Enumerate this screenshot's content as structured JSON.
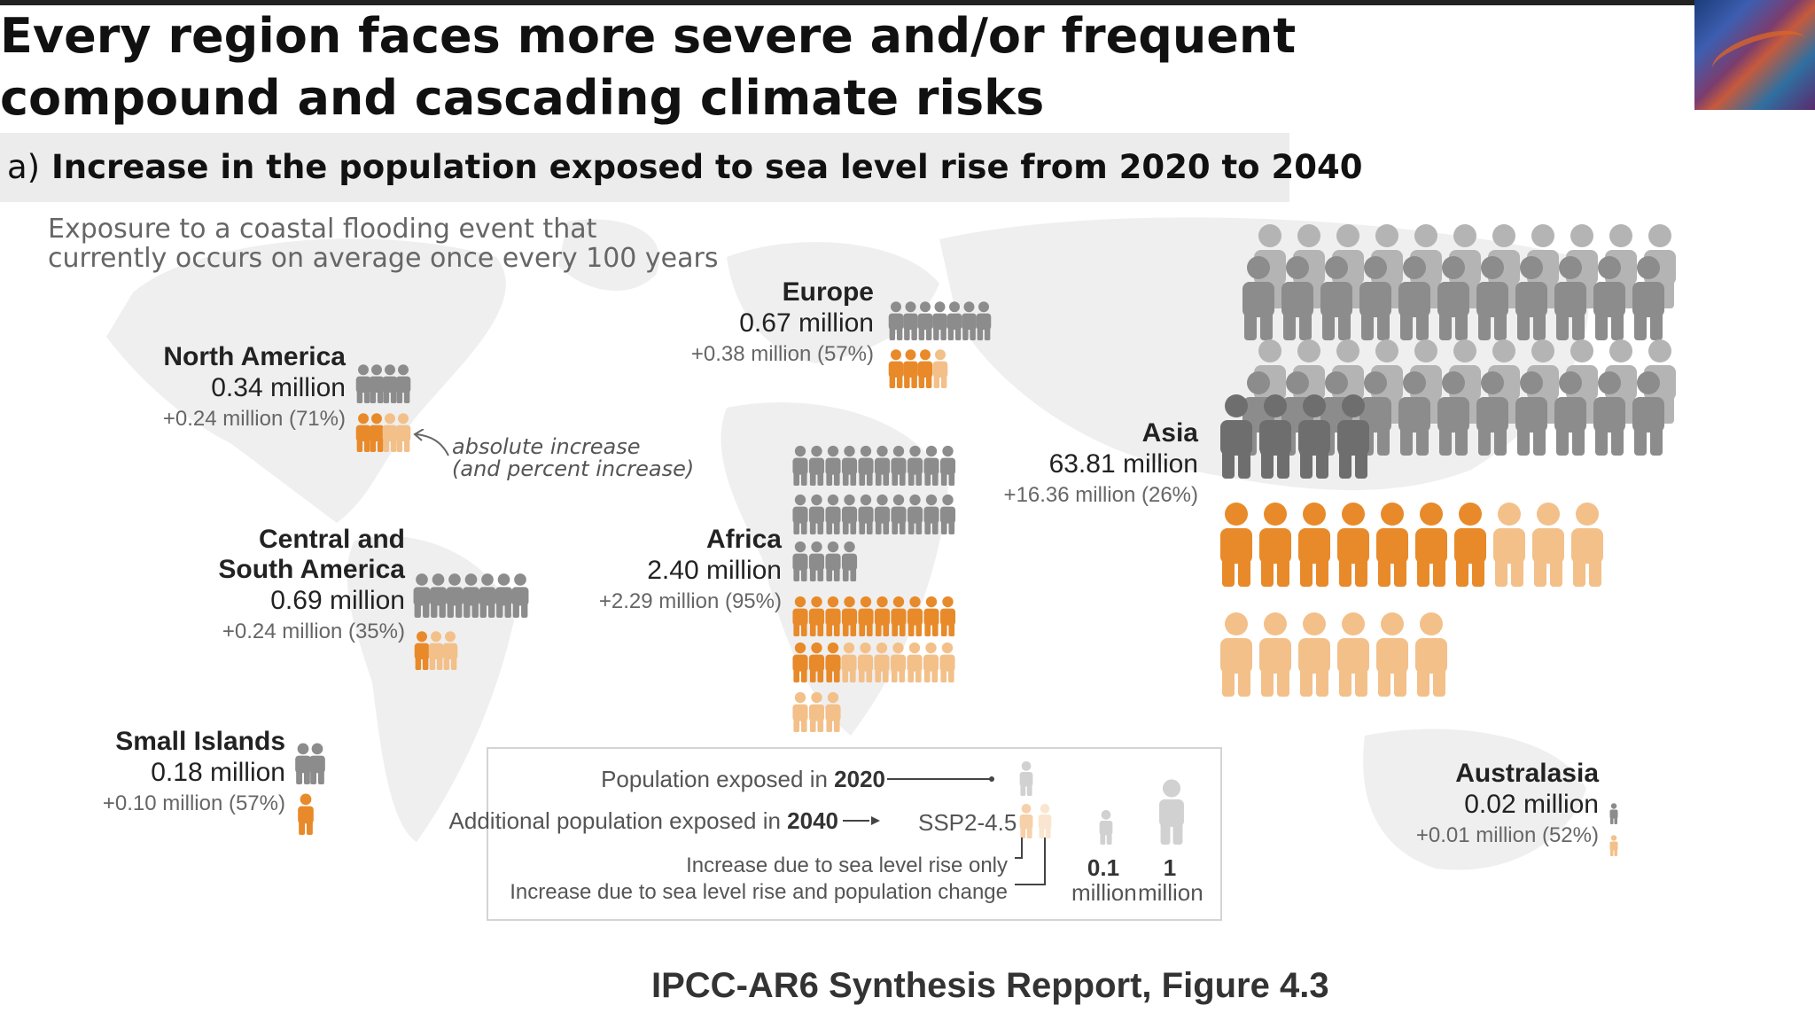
{
  "title": "Every region faces more severe and/or frequent compound and cascading climate risks",
  "panel": {
    "letter": "a)",
    "title": "Increase in the population exposed to sea level rise from 2020 to 2040"
  },
  "caption": {
    "line1": "Exposure to a coastal flooding event that",
    "line2": "currently occurs on average once every 100 years"
  },
  "regions": {
    "north_america": {
      "name": "North America",
      "value": "0.34 million",
      "increase": "+0.24 million (71%)"
    },
    "europe": {
      "name": "Europe",
      "value": "0.67 million",
      "increase": "+0.38 million (57%)"
    },
    "asia": {
      "name": "Asia",
      "value": "63.81 million",
      "increase": "+16.36 million (26%)"
    },
    "central_south_america": {
      "name": "Central and\nSouth America",
      "value": "0.69 million",
      "increase": "+0.24 million (35%)"
    },
    "africa": {
      "name": "Africa",
      "value": "2.40 million",
      "increase": "+2.29 million (95%)"
    },
    "small_islands": {
      "name": "Small Islands",
      "value": "0.18 million",
      "increase": "+0.10 million (57%)"
    },
    "australasia": {
      "name": "Australasia",
      "value": "0.02 million",
      "increase": "+0.01 million (52%)"
    }
  },
  "annotation": {
    "line1": "absolute increase",
    "line2": "(and percent increase)"
  },
  "legend": {
    "exposed_prefix": "Population exposed  in ",
    "exposed_year": "2020",
    "additional_prefix": "Additional population exposed in ",
    "additional_year": "2040",
    "scenario": "SSP2-4.5",
    "slr_only": "Increase due to sea level rise only",
    "slr_pop": "Increase due to sea level rise and population change",
    "scale_small_value": "0.1",
    "scale_large_value": "1",
    "scale_unit": "million"
  },
  "credit": "IPCC-AR6 Synthesis Repport, Figure 4.3",
  "colors": {
    "grey": "#8c8c8c",
    "dark_grey": "#6e6e6e",
    "light_grey": "#b4b4b4",
    "orange": "#e88a2a",
    "light_orange": "#f3c08a",
    "map": "#efefef"
  },
  "chart_data": {
    "type": "pictogram",
    "units": "million people",
    "unit_small": 0.1,
    "unit_large": 1,
    "series": [
      {
        "name": "Population exposed in 2020",
        "color": "grey"
      },
      {
        "name": "Additional population exposed in 2040 (SSP2-4.5)",
        "color": "orange"
      }
    ],
    "regions": [
      {
        "region": "North America",
        "exposed_2020": 0.34,
        "increase_2040": 0.24,
        "increase_pct": 71
      },
      {
        "region": "Europe",
        "exposed_2020": 0.67,
        "increase_2040": 0.38,
        "increase_pct": 57
      },
      {
        "region": "Asia",
        "exposed_2020": 63.81,
        "increase_2040": 16.36,
        "increase_pct": 26
      },
      {
        "region": "Central and South America",
        "exposed_2020": 0.69,
        "increase_2040": 0.24,
        "increase_pct": 35
      },
      {
        "region": "Africa",
        "exposed_2020": 2.4,
        "increase_2040": 2.29,
        "increase_pct": 95
      },
      {
        "region": "Small Islands",
        "exposed_2020": 0.18,
        "increase_2040": 0.1,
        "increase_pct": 57
      },
      {
        "region": "Australasia",
        "exposed_2020": 0.02,
        "increase_2040": 0.01,
        "increase_pct": 52
      }
    ]
  }
}
